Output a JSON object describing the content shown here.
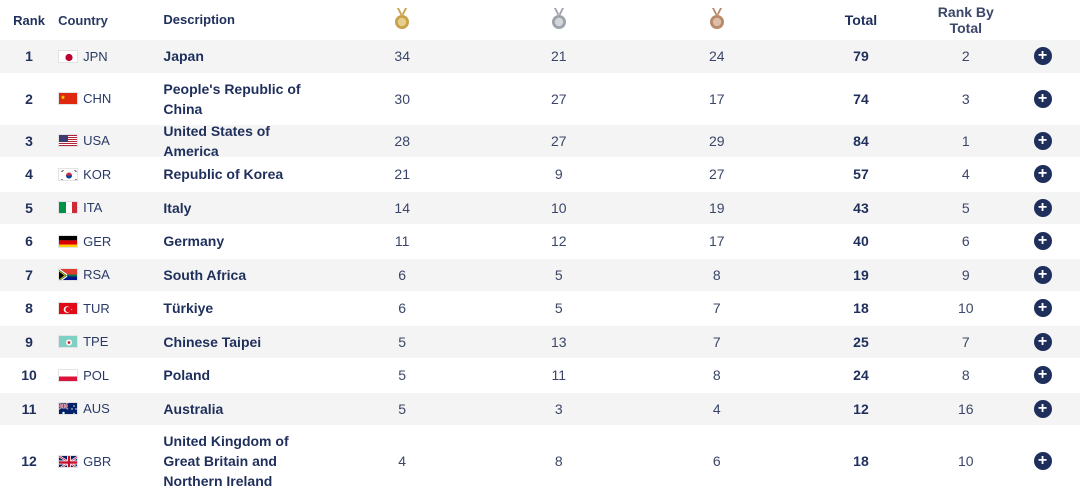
{
  "header": {
    "rank": "Rank",
    "country": "Country",
    "description": "Description",
    "gold_icon": "gold-medal-icon",
    "silver_icon": "silver-medal-icon",
    "bronze_icon": "bronze-medal-icon",
    "total": "Total",
    "rank_by_total": "Rank By Total"
  },
  "colors": {
    "gold": "#c8a24a",
    "silver": "#9ea3ab",
    "bronze": "#b98a6a",
    "navy": "#1f2f5c"
  },
  "rows": [
    {
      "rank": "1",
      "code": "JPN",
      "flag": "japan-flag-icon",
      "description": "Japan",
      "gold": "34",
      "silver": "21",
      "bronze": "24",
      "total": "79",
      "rank_by_total": "2"
    },
    {
      "rank": "2",
      "code": "CHN",
      "flag": "china-flag-icon",
      "description": "People's Republic of China",
      "gold": "30",
      "silver": "27",
      "bronze": "17",
      "total": "74",
      "rank_by_total": "3"
    },
    {
      "rank": "3",
      "code": "USA",
      "flag": "usa-flag-icon",
      "description": "United States of America",
      "gold": "28",
      "silver": "27",
      "bronze": "29",
      "total": "84",
      "rank_by_total": "1"
    },
    {
      "rank": "4",
      "code": "KOR",
      "flag": "korea-flag-icon",
      "description": "Republic of Korea",
      "gold": "21",
      "silver": "9",
      "bronze": "27",
      "total": "57",
      "rank_by_total": "4"
    },
    {
      "rank": "5",
      "code": "ITA",
      "flag": "italy-flag-icon",
      "description": "Italy",
      "gold": "14",
      "silver": "10",
      "bronze": "19",
      "total": "43",
      "rank_by_total": "5"
    },
    {
      "rank": "6",
      "code": "GER",
      "flag": "germany-flag-icon",
      "description": "Germany",
      "gold": "11",
      "silver": "12",
      "bronze": "17",
      "total": "40",
      "rank_by_total": "6"
    },
    {
      "rank": "7",
      "code": "RSA",
      "flag": "south-africa-flag-icon",
      "description": "South Africa",
      "gold": "6",
      "silver": "5",
      "bronze": "8",
      "total": "19",
      "rank_by_total": "9"
    },
    {
      "rank": "8",
      "code": "TUR",
      "flag": "turkiye-flag-icon",
      "description": "Türkiye",
      "gold": "6",
      "silver": "5",
      "bronze": "7",
      "total": "18",
      "rank_by_total": "10"
    },
    {
      "rank": "9",
      "code": "TPE",
      "flag": "chinese-taipei-flag-icon",
      "description": "Chinese Taipei",
      "gold": "5",
      "silver": "13",
      "bronze": "7",
      "total": "25",
      "rank_by_total": "7"
    },
    {
      "rank": "10",
      "code": "POL",
      "flag": "poland-flag-icon",
      "description": "Poland",
      "gold": "5",
      "silver": "11",
      "bronze": "8",
      "total": "24",
      "rank_by_total": "8"
    },
    {
      "rank": "11",
      "code": "AUS",
      "flag": "australia-flag-icon",
      "description": "Australia",
      "gold": "5",
      "silver": "3",
      "bronze": "4",
      "total": "12",
      "rank_by_total": "16"
    },
    {
      "rank": "12",
      "code": "GBR",
      "flag": "great-britain-flag-icon",
      "description": "United Kingdom of Great Britain and Northern Ireland",
      "gold": "4",
      "silver": "8",
      "bronze": "6",
      "total": "18",
      "rank_by_total": "10"
    }
  ],
  "expand_icon": "plus-circle-icon"
}
